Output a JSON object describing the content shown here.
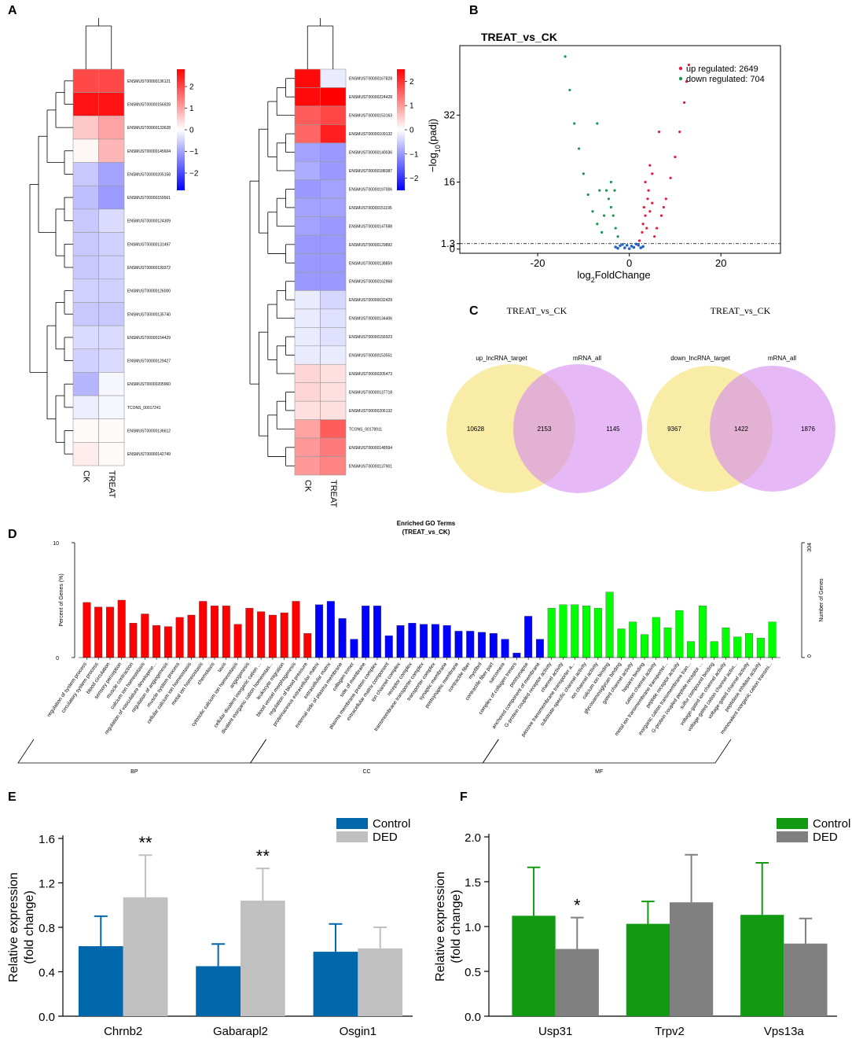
{
  "chart_data": [
    {
      "type": "heatmap",
      "panel": "A",
      "columns": [
        "CK",
        "TREAT"
      ],
      "rows": [
        "ENSMUST00000136121",
        "ENSMUST00000156928",
        "ENSMUST00000133628",
        "ENSMUST00000145604",
        "ENSMUST00000205158",
        "ENSMUST00000159561",
        "ENSMUST00000124309",
        "ENSMUST00000131497",
        "ENSMUST00000199372",
        "ENSMUST00000126000",
        "ENSMUST00000135740",
        "ENSMUST00000154429",
        "ENSMUST00000129427",
        "ENSMUST00000205960",
        "TCONS_00017241",
        "ENSMUST00000136612",
        "ENSMUST00000142749"
      ],
      "values": [
        [
          2.0,
          2.0
        ],
        [
          2.6,
          2.6
        ],
        [
          0.6,
          1.0
        ],
        [
          0.1,
          0.8
        ],
        [
          -0.6,
          -1.0
        ],
        [
          -0.7,
          -1.1
        ],
        [
          -0.6,
          -0.4
        ],
        [
          -0.6,
          -0.5
        ],
        [
          -0.6,
          -0.5
        ],
        [
          -0.5,
          -0.5
        ],
        [
          -0.6,
          -0.6
        ],
        [
          -0.4,
          -0.4
        ],
        [
          -0.5,
          -0.4
        ],
        [
          -0.8,
          -0.1
        ],
        [
          -0.2,
          -0.1
        ],
        [
          0.05,
          0.05
        ],
        [
          0.2,
          0.05
        ]
      ],
      "clim": [
        -2.8,
        2.8
      ],
      "cticks": [
        {
          "value": -2,
          "label": "−2"
        },
        {
          "value": -1,
          "label": "−1"
        },
        0,
        1,
        2
      ]
    },
    {
      "type": "heatmap",
      "columns": [
        "CK",
        "TREAT"
      ],
      "rows": [
        "ENSMUST00000167828",
        "ENSMUST00000224428",
        "ENSMUST00000153163",
        "ENSMUST00000109132",
        "ENSMUST00000140036",
        "ENSMUST00000188387",
        "ENSMUST00000197006",
        "ENSMUST00000151195",
        "ENSMUST00000147598",
        "ENSMUST00000129892",
        "ENSMUST00000138859",
        "ENSMUST00000162968",
        "ENSMUST00000032429",
        "ENSMUST00000134406",
        "ENSMUST00000156923",
        "ENSMUST00000153551",
        "ENSMUST00000205473",
        "ENSMUST00000137718",
        "ENSMUST00000206132",
        "TCONS_00178911",
        "ENSMUST00000148594",
        "ENSMUST00000137901"
      ],
      "values": [
        [
          2.4,
          -0.2
        ],
        [
          2.4,
          2.5
        ],
        [
          1.6,
          1.8
        ],
        [
          1.5,
          2.2
        ],
        [
          -0.9,
          -1.0
        ],
        [
          -0.8,
          -1.0
        ],
        [
          -1.0,
          -0.9
        ],
        [
          -0.9,
          -0.9
        ],
        [
          -0.9,
          -1.0
        ],
        [
          -1.0,
          -1.0
        ],
        [
          -1.0,
          -1.0
        ],
        [
          -1.0,
          -1.0
        ],
        [
          -0.2,
          -0.4
        ],
        [
          -0.2,
          -0.3
        ],
        [
          -0.2,
          -0.3
        ],
        [
          -0.2,
          -0.2
        ],
        [
          0.4,
          0.3
        ],
        [
          0.4,
          0.3
        ],
        [
          0.3,
          0.3
        ],
        [
          0.9,
          1.6
        ],
        [
          1.0,
          1.3
        ],
        [
          1.0,
          1.2
        ]
      ],
      "clim": [
        -2.5,
        2.5
      ],
      "cticks": [
        {
          "value": -2,
          "label": "−2"
        },
        {
          "value": -1,
          "label": "−1"
        },
        0,
        1,
        2
      ]
    },
    {
      "type": "volcano",
      "panel": "B",
      "title": "TREAT_vs_CK",
      "xlabel": [
        "log",
        "2",
        "FoldChange"
      ],
      "ylabel": [
        "−log",
        "10",
        "(padj)"
      ],
      "xlim": [
        -37,
        33
      ],
      "ylim": [
        -1,
        48.6
      ],
      "xticks": [
        -20,
        0,
        20
      ],
      "yticks": [
        0,
        1.3,
        16,
        32
      ],
      "threshold": 1.3,
      "series": [
        {
          "name": "up regulated: 2649",
          "color": "#e8193c",
          "x": [
            2.2,
            2.8,
            3,
            3.5,
            3.2,
            4,
            4.2,
            3.8,
            4.5,
            5,
            5.5,
            6,
            7,
            8,
            9,
            10,
            11,
            12,
            12.5,
            13,
            6.5,
            4.5,
            3.5,
            5,
            7.5
          ],
          "y": [
            2,
            4,
            6,
            8,
            10,
            12,
            14,
            5,
            9,
            11,
            3,
            5,
            8,
            12,
            17,
            22,
            28,
            35,
            40,
            44,
            28,
            20,
            16,
            18,
            10
          ]
        },
        {
          "name": "down regulated: 704",
          "color": "#1a9850",
          "x": [
            -2.5,
            -3,
            -3.5,
            -4,
            -4.5,
            -3.2,
            -4,
            -5,
            -6,
            -7,
            -8,
            -9,
            -10,
            -11,
            -12,
            -13,
            -14,
            -7,
            -6.5,
            -5.5
          ],
          "y": [
            3,
            5,
            8,
            10,
            12,
            14,
            16,
            14,
            4,
            6,
            9,
            13,
            18,
            24,
            30,
            38,
            46,
            30,
            14,
            8
          ]
        }
      ],
      "background": {
        "color": "#2166c4",
        "x": [
          -3,
          -2,
          -1,
          0,
          1,
          2,
          3,
          -1.5,
          1.5,
          0.5,
          -0.5,
          2.5,
          -2.5
        ],
        "y": [
          0.5,
          0.8,
          0.3,
          0.1,
          0.4,
          0.9,
          0.6,
          1.1,
          1.2,
          0.7,
          0.9,
          0.3,
          0.2
        ]
      }
    },
    {
      "type": "venn",
      "panel": "C",
      "title": "TREAT_vs_CK",
      "sets": [
        {
          "name": "up_lncRNA_target",
          "color": "#f6e58a",
          "only": 10628
        },
        {
          "name": "mRNA_all",
          "color": "#d58bf0",
          "only": 1145
        }
      ],
      "both": 2153
    },
    {
      "type": "venn",
      "title": "TREAT_vs_CK",
      "sets": [
        {
          "name": "down_lncRNA_target",
          "color": "#f6e58a",
          "only": 9367
        },
        {
          "name": "mRNA_all",
          "color": "#d58bf0",
          "only": 1876
        }
      ],
      "both": 1422
    },
    {
      "type": "go_bar",
      "panel": "D",
      "title": "Enriched GO Terms",
      "subtitle": "(TREAT_vs_CK)",
      "ylabel": "Percent of Genes (%)",
      "y2label": "Number of Genes",
      "ylim": [
        0,
        10
      ],
      "yticks": [
        0,
        10
      ],
      "y2lim": [
        0,
        304
      ],
      "y2ticks": [
        0,
        304
      ],
      "groups": [
        {
          "name": "BP",
          "color": "#ff0000",
          "categories": [
            "regulation of system process",
            "circulatory system process",
            "blood circulation",
            "sensory perception",
            "muscle contraction",
            "calcium ion homeostasis",
            "regulation of vasculature developme...",
            "regulation of angiogenesis",
            "muscle system process",
            "cellular calcium ion homeostasis",
            "metal ion homeostasis",
            "chemotaxis",
            "taxis",
            "cytosolic calcium ion homeostasis",
            "angiogenesis",
            "cellular divalent inorganic cation ...",
            "divalent inorganic cation homeostas...",
            "leukocyte migration",
            "blood vessel morphogenesis",
            "regulation of blood pressure"
          ],
          "values": [
            4.8,
            4.4,
            4.4,
            5.0,
            3.0,
            3.8,
            2.8,
            2.7,
            3.5,
            3.7,
            4.9,
            4.5,
            4.5,
            2.9,
            4.3,
            4.0,
            3.7,
            3.9,
            4.9,
            2.1
          ]
        },
        {
          "name": "CC",
          "color": "#0000ff",
          "categories": [
            "proteinaceous extracellular matrix",
            "extracellular matrix",
            "external side of plasma membrane",
            "collagen trimer",
            "side of membrane",
            "plasma membrane protein complex",
            "extracellular matrix component",
            "ion channel complex",
            "receptor complex",
            "transmembrane transporter complex",
            "transporter complex",
            "synaptic membrane",
            "postsynaptic membrane",
            "contractile fiber",
            "myofibril",
            "contractile fiber part",
            "sarcomere",
            "complex of collagen trimers",
            "postsynapse",
            "anchored component of membrane"
          ],
          "values": [
            4.6,
            4.9,
            3.4,
            1.6,
            4.5,
            4.5,
            1.9,
            2.8,
            3.0,
            2.9,
            2.9,
            2.8,
            2.3,
            2.3,
            2.2,
            2.1,
            1.6,
            0.4,
            3.6,
            1.6
          ]
        },
        {
          "name": "MF",
          "color": "#00ff00",
          "categories": [
            "G-protein coupled receptor activity",
            "channel activity",
            "passive transmembrane transporter a...",
            "substrate-specific channel activity",
            "ion channel activity",
            "calcium ion binding",
            "glycosaminoglycan binding",
            "gated channel activity",
            "heparin binding",
            "cation channel activity",
            "metal ion transmembrane transporter...",
            "peptide receptor activity",
            "inorganic cation transmembrane tran...",
            "G-protein coupled peptide receptor ...",
            "sulfur compound binding",
            "voltage-gated ion channel activity",
            "voltage-gated cation channel activi...",
            "voltage-gated channel activity",
            "peptidase inhibitor activity",
            "monovalent inorganic cation transmi..."
          ],
          "values": [
            4.3,
            4.6,
            4.6,
            4.5,
            4.3,
            5.7,
            2.5,
            3.1,
            2.0,
            3.5,
            2.6,
            4.1,
            1.4,
            4.5,
            1.4,
            2.6,
            1.8,
            2.1,
            1.7,
            3.1
          ]
        }
      ]
    },
    {
      "type": "error_bar",
      "panel": "E",
      "ylabel": [
        "Relative expression",
        "(fold change)"
      ],
      "categories": [
        "Chrnb2",
        "Gabarapl2",
        "Osgin1"
      ],
      "ylim": [
        0,
        1.6
      ],
      "yticks": [
        {
          "value": 0,
          "label": "0.0"
        },
        0.4,
        0.8,
        1.2,
        1.6
      ],
      "series": [
        {
          "name": "Control",
          "color": "#0067ab",
          "values": [
            0.63,
            0.45,
            0.58
          ],
          "errors": [
            0.27,
            0.2,
            0.25
          ]
        },
        {
          "name": "DED",
          "color": "#c0c0c0",
          "values": [
            1.07,
            1.04,
            0.61
          ],
          "errors": [
            0.38,
            0.29,
            0.19
          ],
          "significance": [
            "**",
            "**",
            null
          ]
        }
      ]
    },
    {
      "type": "error_bar",
      "panel": "F",
      "ylabel": [
        "Relative expression",
        "(fold change)"
      ],
      "categories": [
        "Usp31",
        "Trpv2",
        "Vps13a"
      ],
      "ylim": [
        0,
        2.0
      ],
      "yticks": [
        {
          "value": 0,
          "label": "0.0"
        },
        0.5,
        {
          "value": 1,
          "label": "1.0"
        },
        1.5,
        {
          "value": 2,
          "label": "2.0"
        }
      ],
      "series": [
        {
          "name": "Control",
          "color": "#129a12",
          "values": [
            1.12,
            1.03,
            1.13
          ],
          "errors": [
            0.54,
            0.25,
            0.58
          ]
        },
        {
          "name": "DED",
          "color": "#808080",
          "values": [
            0.75,
            1.27,
            0.81
          ],
          "errors": [
            0.35,
            0.53,
            0.28
          ],
          "significance": [
            "*",
            null,
            null
          ]
        }
      ]
    }
  ]
}
